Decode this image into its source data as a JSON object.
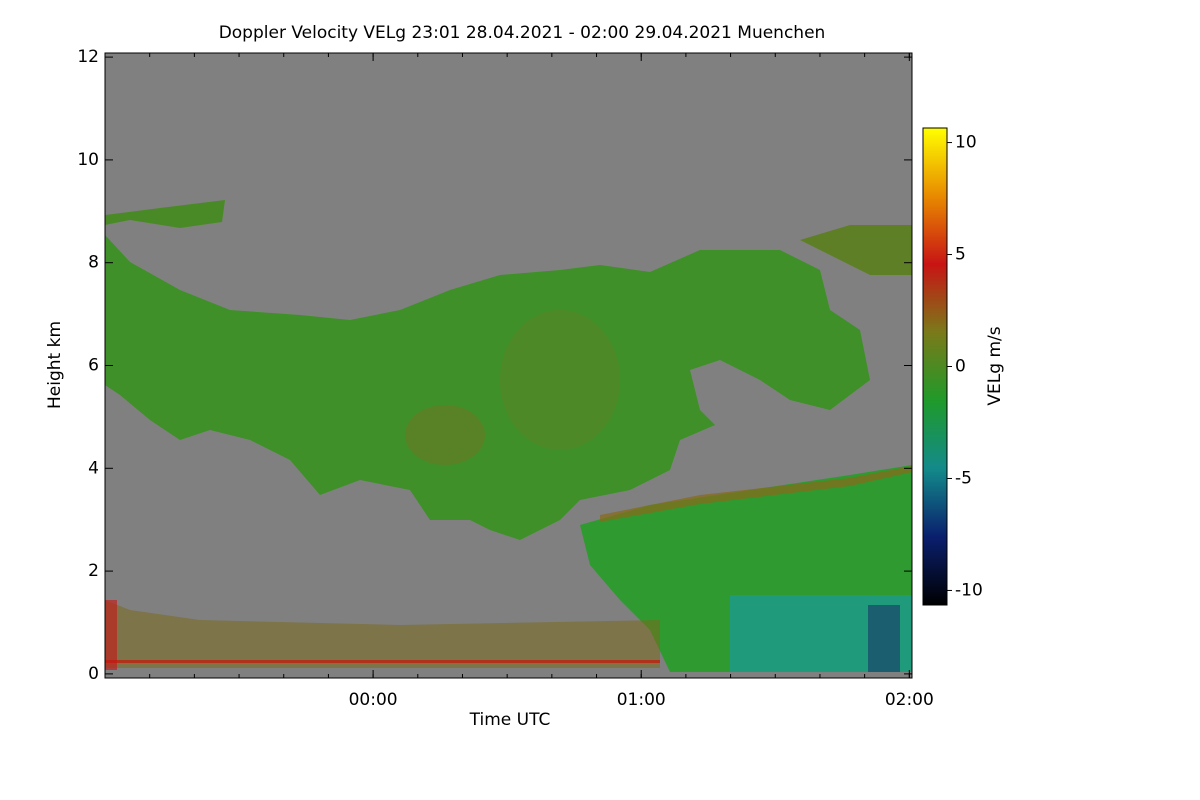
{
  "chart_data": {
    "type": "heatmap",
    "title": "Doppler Velocity VELg   23:01 28.04.2021 - 02:00 29.04.2021 Muenchen",
    "xlabel": "Time UTC",
    "ylabel": "Height km",
    "xlim": [
      23,
      26.01
    ],
    "xticks": [
      {
        "value": 24,
        "label": "00:00"
      },
      {
        "value": 25,
        "label": "01:00"
      },
      {
        "value": 26,
        "label": "02:00"
      }
    ],
    "ylim": [
      -0.08,
      12.08
    ],
    "yticks": [
      0,
      2,
      4,
      6,
      8,
      10,
      12
    ],
    "colorbar": {
      "label": "VELg m/s",
      "zlim": [
        -10.65,
        10.65
      ],
      "ticks": [
        10,
        5,
        0,
        -5,
        -10
      ],
      "colors": [
        "#000000",
        "#0a1f6e",
        "#138a8a",
        "#1f9a2a",
        "#7a7a1a",
        "#c81414",
        "#e88a00",
        "#ffff00"
      ]
    }
  }
}
